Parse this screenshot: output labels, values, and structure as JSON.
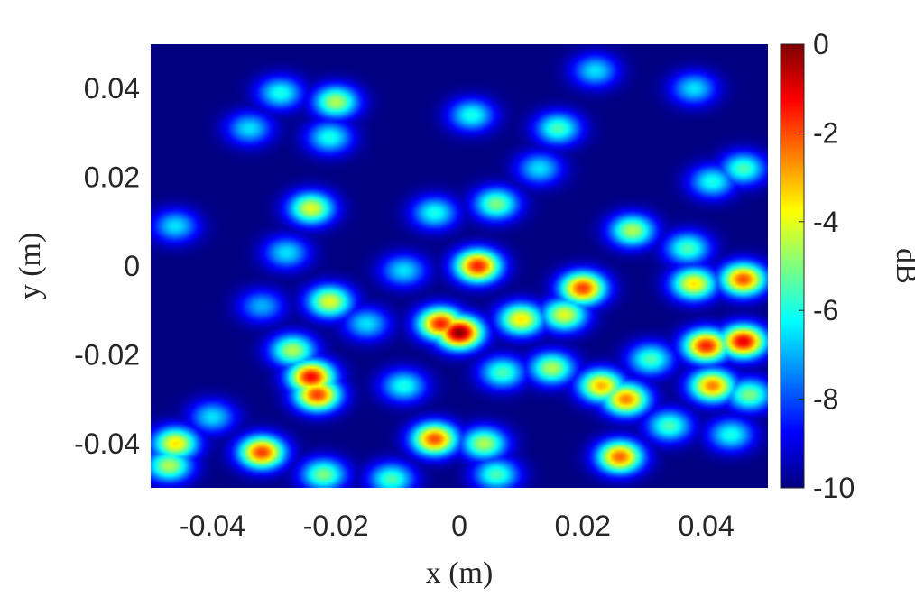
{
  "chart_data": {
    "type": "heatmap",
    "title": "",
    "xlabel": "x (m)",
    "ylabel": "y (m)",
    "xlim": [
      -0.05,
      0.05
    ],
    "ylim": [
      -0.05,
      0.05
    ],
    "x_ticks": [
      -0.04,
      -0.02,
      0,
      0.02,
      0.04
    ],
    "x_tick_labels": [
      "-0.04",
      "-0.02",
      "0",
      "0.02",
      "0.04"
    ],
    "y_ticks": [
      0.04,
      0.02,
      0,
      -0.02,
      -0.04
    ],
    "y_tick_labels": [
      "0.04",
      "0.02",
      "0",
      "-0.02",
      "-0.04"
    ],
    "colorbar": {
      "label": "dB",
      "range": [
        -10,
        0
      ],
      "colormap": "jet",
      "ticks": [
        0,
        -2,
        -4,
        -6,
        -8,
        -10
      ],
      "tick_labels": [
        "0",
        "-2",
        "-4",
        "-6",
        "-8",
        "-10"
      ]
    },
    "background_level_db": -10,
    "hotspots": [
      {
        "x": 0.0,
        "y": -0.015,
        "db": 0
      },
      {
        "x": -0.003,
        "y": -0.013,
        "db": -1.5
      },
      {
        "x": 0.003,
        "y": 0.0,
        "db": -1.5
      },
      {
        "x": 0.02,
        "y": -0.005,
        "db": -1.8
      },
      {
        "x": 0.01,
        "y": -0.012,
        "db": -3.5
      },
      {
        "x": 0.027,
        "y": -0.03,
        "db": -2.5
      },
      {
        "x": 0.023,
        "y": -0.027,
        "db": -3.0
      },
      {
        "x": 0.026,
        "y": -0.043,
        "db": -2.2
      },
      {
        "x": -0.024,
        "y": -0.025,
        "db": -1.2
      },
      {
        "x": -0.023,
        "y": -0.029,
        "db": -1.8
      },
      {
        "x": -0.004,
        "y": -0.039,
        "db": -2.0
      },
      {
        "x": -0.032,
        "y": -0.042,
        "db": -1.8
      },
      {
        "x": -0.046,
        "y": -0.04,
        "db": -3.5
      },
      {
        "x": 0.04,
        "y": -0.018,
        "db": -1.5
      },
      {
        "x": 0.046,
        "y": -0.017,
        "db": -1.0
      },
      {
        "x": 0.041,
        "y": -0.027,
        "db": -2.5
      },
      {
        "x": 0.046,
        "y": -0.003,
        "db": -2.0
      },
      {
        "x": 0.038,
        "y": -0.004,
        "db": -3.5
      },
      {
        "x": -0.02,
        "y": 0.037,
        "db": -4.5
      },
      {
        "x": -0.024,
        "y": 0.013,
        "db": -4.0
      },
      {
        "x": -0.021,
        "y": -0.008,
        "db": -4.0
      },
      {
        "x": 0.006,
        "y": 0.014,
        "db": -5.0
      },
      {
        "x": 0.028,
        "y": 0.008,
        "db": -4.5
      },
      {
        "x": -0.004,
        "y": 0.012,
        "db": -6.0
      },
      {
        "x": 0.002,
        "y": 0.034,
        "db": -6.0
      },
      {
        "x": -0.029,
        "y": 0.039,
        "db": -6.0
      },
      {
        "x": 0.022,
        "y": 0.044,
        "db": -6.5
      },
      {
        "x": 0.038,
        "y": 0.04,
        "db": -6.5
      },
      {
        "x": 0.016,
        "y": 0.031,
        "db": -5.5
      },
      {
        "x": -0.021,
        "y": 0.029,
        "db": -6.0
      },
      {
        "x": -0.034,
        "y": 0.031,
        "db": -6.5
      },
      {
        "x": 0.046,
        "y": 0.022,
        "db": -5.5
      },
      {
        "x": 0.041,
        "y": 0.019,
        "db": -6.0
      },
      {
        "x": -0.046,
        "y": 0.009,
        "db": -6.5
      },
      {
        "x": -0.028,
        "y": 0.003,
        "db": -6.5
      },
      {
        "x": 0.013,
        "y": 0.022,
        "db": -6.5
      },
      {
        "x": 0.037,
        "y": 0.004,
        "db": -5.5
      },
      {
        "x": -0.009,
        "y": -0.001,
        "db": -6.5
      },
      {
        "x": -0.047,
        "y": -0.045,
        "db": -4.5
      },
      {
        "x": -0.022,
        "y": -0.047,
        "db": -5.0
      },
      {
        "x": -0.027,
        "y": -0.019,
        "db": -4.5
      },
      {
        "x": -0.009,
        "y": -0.027,
        "db": -6.0
      },
      {
        "x": 0.007,
        "y": -0.024,
        "db": -5.5
      },
      {
        "x": 0.015,
        "y": -0.023,
        "db": -4.5
      },
      {
        "x": 0.017,
        "y": -0.011,
        "db": -4.0
      },
      {
        "x": 0.004,
        "y": -0.04,
        "db": -4.5
      },
      {
        "x": 0.006,
        "y": -0.047,
        "db": -5.5
      },
      {
        "x": 0.031,
        "y": -0.021,
        "db": -5.5
      },
      {
        "x": 0.034,
        "y": -0.036,
        "db": -5.5
      },
      {
        "x": 0.044,
        "y": -0.038,
        "db": -6.0
      },
      {
        "x": 0.047,
        "y": -0.029,
        "db": -5.0
      },
      {
        "x": -0.04,
        "y": -0.034,
        "db": -6.5
      },
      {
        "x": -0.011,
        "y": -0.048,
        "db": -5.5
      },
      {
        "x": -0.015,
        "y": -0.013,
        "db": -6.5
      },
      {
        "x": -0.032,
        "y": -0.009,
        "db": -7.0
      }
    ]
  }
}
